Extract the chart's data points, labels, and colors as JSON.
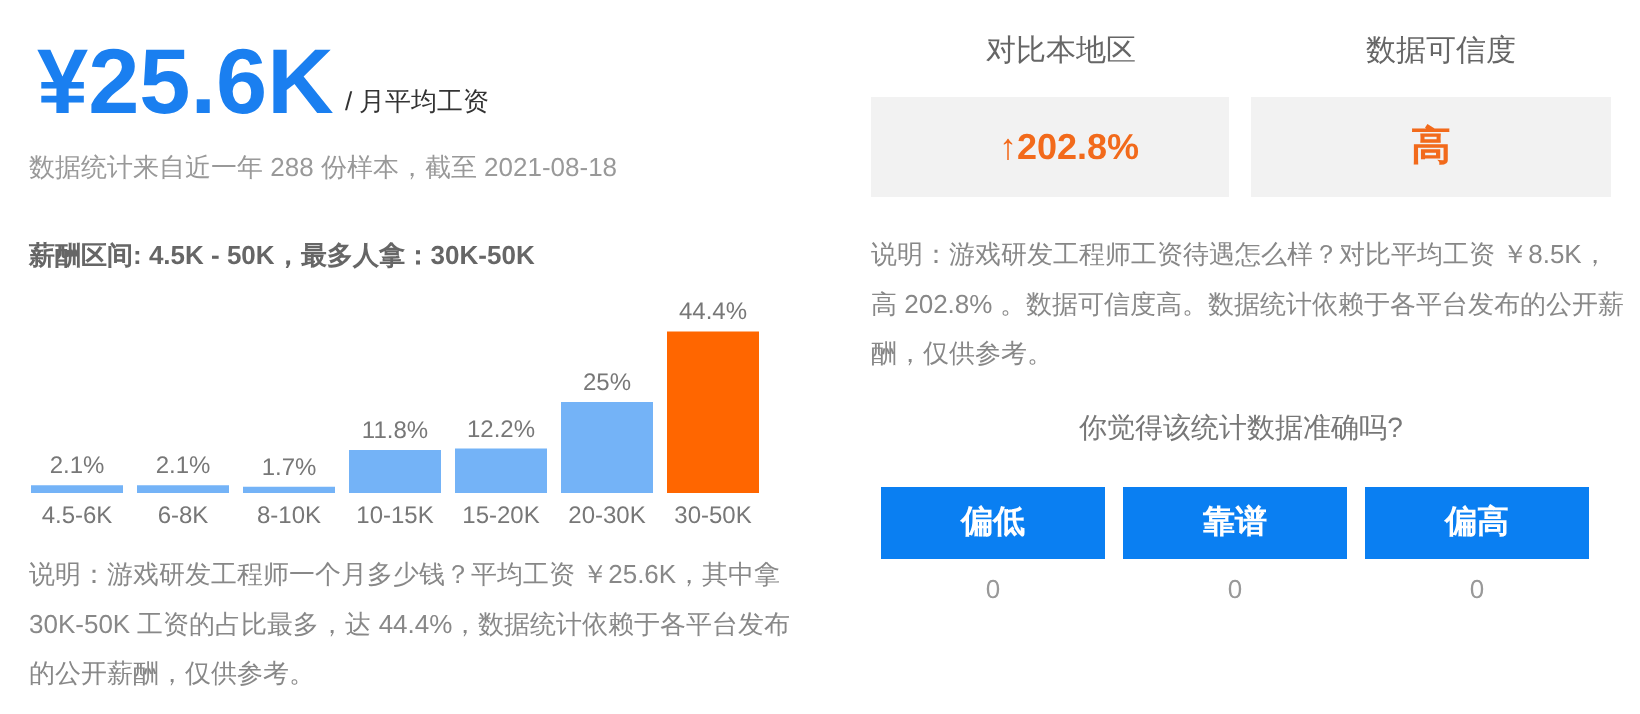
{
  "chart_data": [
    {
      "type": "bar",
      "title": "¥25.6K",
      "subtitle": "/ 月平均工资",
      "categories": [
        "4.5-6K",
        "6-8K",
        "8-10K",
        "10-15K",
        "15-20K",
        "20-30K",
        "30-50K"
      ],
      "values": [
        2.1,
        2.1,
        1.7,
        11.8,
        12.2,
        25,
        44.4
      ],
      "value_labels": [
        "2.1%",
        "2.1%",
        "1.7%",
        "11.8%",
        "12.2%",
        "25%",
        "44.4%"
      ],
      "colors": [
        "#74b3f7",
        "#74b3f7",
        "#74b3f7",
        "#74b3f7",
        "#74b3f7",
        "#74b3f7",
        "#ff6600"
      ],
      "annotations": [
        "数据统计来自近一年 288 份样本，截至 2021-08-18",
        "薪酬区间: 4.5K - 50K，最多人拿：30K-50K",
        "说明：游戏研发工程师一个月多少钱？平均工资 ￥25.6K，其中拿 30K-50K 工资的占比最多，达 44.4%，数据统计依赖于各平台发布的公开薪酬，仅供参考。"
      ]
    },
    {
      "type": "other",
      "annotations": [
        "对比本地区",
        "数据可信度",
        "↑202.8%",
        "高",
        "说明：游戏研发工程师工资待遇怎么样？对比平均工资 ￥8.5K，高 202.8% 。数据可信度高。数据统计依赖于各平台发布的公开薪酬，仅供参考。",
        "你觉得该统计数据准确吗?",
        "偏低",
        "靠谱",
        "偏高",
        "0",
        "0",
        "0"
      ]
    }
  ]
}
